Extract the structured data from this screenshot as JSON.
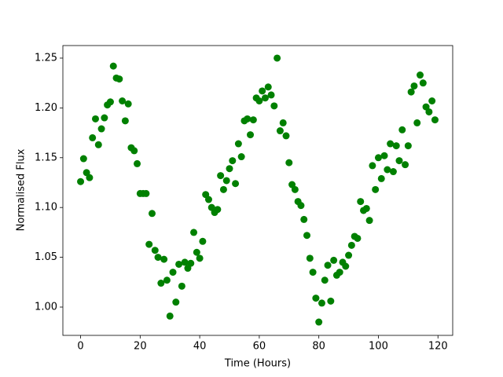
{
  "chart_data": {
    "type": "scatter",
    "x_label": "Time (Hours)",
    "y_label": "Normalised Flux",
    "color": "#008000",
    "x": [
      0,
      1,
      2,
      3,
      4,
      5,
      6,
      7,
      8,
      9,
      10,
      11,
      12,
      13,
      14,
      15,
      16,
      17,
      18,
      19,
      20,
      21,
      22,
      23,
      24,
      25,
      26,
      27,
      28,
      29,
      30,
      31,
      32,
      33,
      34,
      35,
      36,
      37,
      38,
      39,
      40,
      41,
      42,
      43,
      44,
      45,
      46,
      47,
      48,
      49,
      50,
      51,
      52,
      53,
      54,
      55,
      56,
      57,
      58,
      59,
      60,
      61,
      62,
      63,
      64,
      65,
      66,
      67,
      68,
      69,
      70,
      71,
      72,
      73,
      74,
      75,
      76,
      77,
      78,
      79,
      80,
      81,
      82,
      83,
      84,
      85,
      86,
      87,
      88,
      89,
      90,
      91,
      92,
      93,
      94,
      95,
      96,
      97,
      98,
      99,
      100,
      101,
      102,
      103,
      104,
      105,
      106,
      107,
      108,
      109,
      110,
      111,
      112,
      113,
      114,
      115,
      116,
      117,
      118,
      119
    ],
    "values": [
      1.126,
      1.149,
      1.135,
      1.13,
      1.17,
      1.189,
      1.163,
      1.179,
      1.19,
      1.203,
      1.206,
      1.242,
      1.23,
      1.229,
      1.207,
      1.187,
      1.204,
      1.16,
      1.157,
      1.144,
      1.114,
      1.114,
      1.114,
      1.063,
      1.094,
      1.057,
      1.05,
      1.024,
      1.048,
      1.027,
      0.991,
      1.035,
      1.005,
      1.043,
      1.021,
      1.045,
      1.039,
      1.044,
      1.075,
      1.055,
      1.049,
      1.066,
      1.113,
      1.108,
      1.1,
      1.095,
      1.098,
      1.132,
      1.118,
      1.127,
      1.139,
      1.147,
      1.124,
      1.164,
      1.151,
      1.187,
      1.189,
      1.173,
      1.188,
      1.21,
      1.207,
      1.217,
      1.21,
      1.221,
      1.213,
      1.202,
      1.25,
      1.177,
      1.185,
      1.172,
      1.145,
      1.123,
      1.118,
      1.106,
      1.102,
      1.088,
      1.072,
      1.049,
      1.035,
      1.009,
      0.985,
      1.004,
      1.027,
      1.042,
      1.006,
      1.047,
      1.032,
      1.035,
      1.045,
      1.041,
      1.052,
      1.062,
      1.071,
      1.069,
      1.106,
      1.097,
      1.099,
      1.087,
      1.142,
      1.118,
      1.15,
      1.129,
      1.152,
      1.138,
      1.164,
      1.136,
      1.162,
      1.147,
      1.178,
      1.143,
      1.162,
      1.216,
      1.222,
      1.185,
      1.233,
      1.225,
      1.201,
      1.196,
      1.207,
      1.188
    ],
    "xlim": [
      -5.95,
      124.95
    ],
    "xticks": [
      0,
      20,
      40,
      60,
      80,
      100,
      120
    ],
    "ylim": [
      0.9716,
      1.2626
    ],
    "yticks": [
      {
        "value": 1.0,
        "label": "1.00"
      },
      1.05,
      {
        "value": 1.1,
        "label": "1.10"
      },
      1.15,
      {
        "value": 1.2,
        "label": "1.20"
      },
      1.25
    ]
  }
}
